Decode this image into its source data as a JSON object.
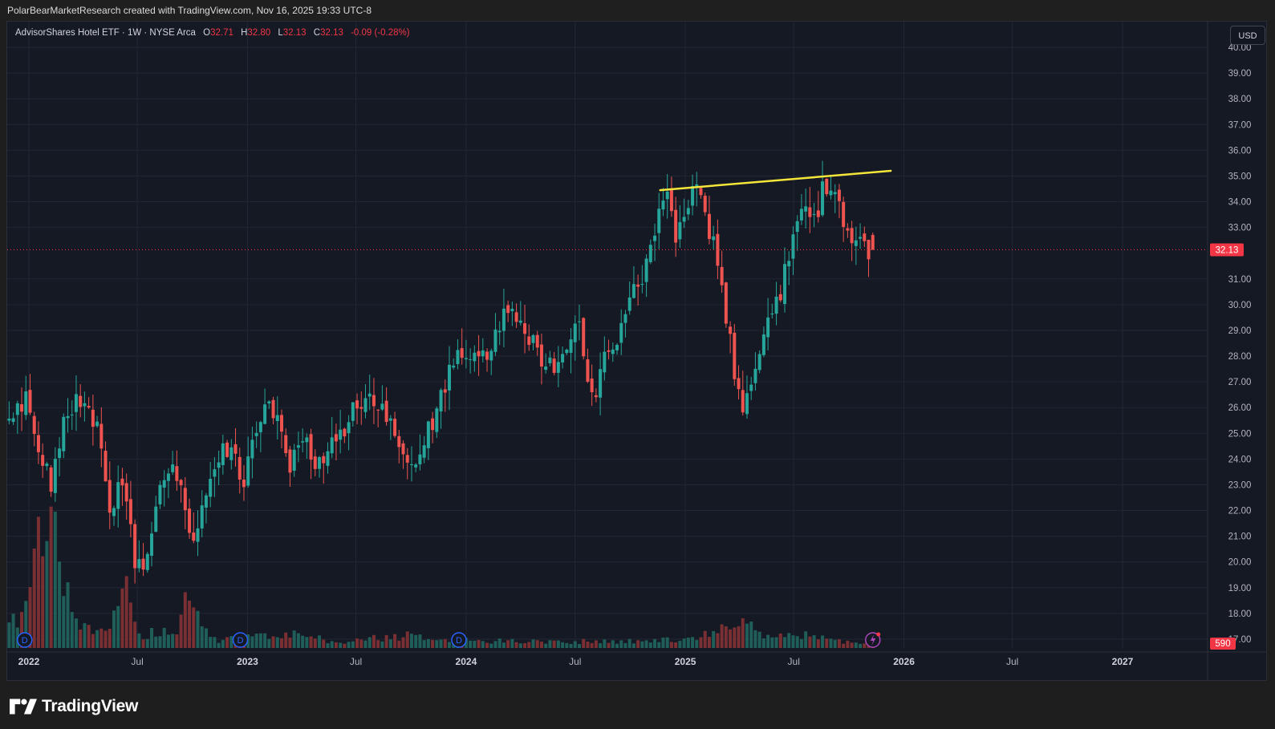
{
  "header": {
    "attribution": "PolarBearMarketResearch created with TradingView.com, Nov 16, 2025 19:33 UTC-8"
  },
  "legend": {
    "symbol": "AdvisorShares Hotel ETF · 1W · NYSE Arca",
    "o_label": "O",
    "o_value": "32.71",
    "h_label": "H",
    "h_value": "32.80",
    "l_label": "L",
    "l_value": "32.13",
    "c_label": "C",
    "c_value": "32.13",
    "change": "-0.09 (-0.28%)"
  },
  "currency_button": "USD",
  "brand": "TradingView",
  "colors": {
    "background": "#151924",
    "grid": "#232735",
    "up": "#26a69a",
    "down": "#ef5350",
    "trendline": "#f5e63a",
    "price_marker": "#f23645",
    "axis_text": "#b2b5be"
  },
  "chart_data": {
    "type": "candlestick",
    "interval": "1W",
    "ylim": [
      16.5,
      40.5
    ],
    "y_ticks": [
      "40.00",
      "39.00",
      "38.00",
      "37.00",
      "36.00",
      "35.00",
      "34.00",
      "33.00",
      "31.00",
      "30.00",
      "29.00",
      "28.00",
      "27.00",
      "26.00",
      "25.00",
      "24.00",
      "23.00",
      "22.00",
      "21.00",
      "20.00",
      "19.00",
      "18.00",
      "17.00"
    ],
    "y_tick_values": [
      40,
      39,
      38,
      37,
      36,
      35,
      34,
      33,
      31,
      30,
      29,
      28,
      27,
      26,
      25,
      24,
      23,
      22,
      21,
      20,
      19,
      18,
      17
    ],
    "x_ticks": [
      {
        "label": "2022",
        "date": "2022-01-01",
        "bold": true
      },
      {
        "label": "Jul",
        "date": "2022-07-01",
        "bold": false
      },
      {
        "label": "2023",
        "date": "2023-01-01",
        "bold": true
      },
      {
        "label": "Jul",
        "date": "2023-07-01",
        "bold": false
      },
      {
        "label": "2024",
        "date": "2024-01-01",
        "bold": true
      },
      {
        "label": "Jul",
        "date": "2024-07-01",
        "bold": false
      },
      {
        "label": "2025",
        "date": "2025-01-01",
        "bold": true
      },
      {
        "label": "Jul",
        "date": "2025-07-01",
        "bold": false
      },
      {
        "label": "2026",
        "date": "2026-01-01",
        "bold": true
      },
      {
        "label": "Jul",
        "date": "2026-07-01",
        "bold": false
      },
      {
        "label": "2027",
        "date": "2027-01-01",
        "bold": true
      }
    ],
    "last_price": 32.13,
    "last_price_label": "32.13",
    "volume_label": "590",
    "dividend_marker_label": "D",
    "dividend_dates": [
      "2021-12-25",
      "2022-12-20",
      "2023-12-20"
    ],
    "trendline": {
      "start": {
        "date": "2024-11-20",
        "price": 34.45
      },
      "end": {
        "date": "2025-12-10",
        "price": 35.2
      }
    },
    "close_path": [
      [
        "2021-11-15",
        25.2
      ],
      [
        "2021-12-27",
        26.4
      ],
      [
        "2022-02-07",
        22.9
      ],
      [
        "2022-02-28",
        25.6
      ],
      [
        "2022-04-04",
        26.6
      ],
      [
        "2022-05-02",
        24.8
      ],
      [
        "2022-05-16",
        22.0
      ],
      [
        "2022-06-06",
        23.3
      ],
      [
        "2022-06-27",
        20.2
      ],
      [
        "2022-07-11",
        19.9
      ],
      [
        "2022-08-08",
        23.0
      ],
      [
        "2022-08-29",
        24.0
      ],
      [
        "2022-09-19",
        22.0
      ],
      [
        "2022-10-03",
        21.0
      ],
      [
        "2022-10-24",
        22.4
      ],
      [
        "2022-11-14",
        24.2
      ],
      [
        "2022-12-05",
        24.3
      ],
      [
        "2022-12-26",
        23.0
      ],
      [
        "2023-01-09",
        24.8
      ],
      [
        "2023-02-06",
        26.0
      ],
      [
        "2023-02-27",
        25.0
      ],
      [
        "2023-03-13",
        23.6
      ],
      [
        "2023-04-03",
        24.8
      ],
      [
        "2023-04-24",
        24.0
      ],
      [
        "2023-05-15",
        24.3
      ],
      [
        "2023-06-05",
        24.9
      ],
      [
        "2023-06-26",
        25.8
      ],
      [
        "2023-07-17",
        26.7
      ],
      [
        "2023-08-07",
        26.0
      ],
      [
        "2023-08-28",
        25.3
      ],
      [
        "2023-09-18",
        24.2
      ],
      [
        "2023-10-09",
        23.8
      ],
      [
        "2023-10-30",
        25.1
      ],
      [
        "2023-11-20",
        26.4
      ],
      [
        "2023-12-11",
        27.8
      ],
      [
        "2024-01-08",
        28.0
      ],
      [
        "2024-02-05",
        28.2
      ],
      [
        "2024-03-04",
        29.6
      ],
      [
        "2024-03-25",
        29.4
      ],
      [
        "2024-04-08",
        29.0
      ],
      [
        "2024-05-06",
        28.0
      ],
      [
        "2024-06-03",
        27.5
      ],
      [
        "2024-06-24",
        28.4
      ],
      [
        "2024-07-08",
        29.3
      ],
      [
        "2024-07-29",
        26.2
      ],
      [
        "2024-08-19",
        27.8
      ],
      [
        "2024-09-09",
        28.4
      ],
      [
        "2024-10-07",
        30.4
      ],
      [
        "2024-10-28",
        31.5
      ],
      [
        "2024-11-18",
        33.6
      ],
      [
        "2024-12-02",
        34.5
      ],
      [
        "2024-12-16",
        32.8
      ],
      [
        "2025-01-06",
        33.8
      ],
      [
        "2025-01-20",
        34.6
      ],
      [
        "2025-02-10",
        33.0
      ],
      [
        "2025-02-24",
        31.5
      ],
      [
        "2025-03-10",
        29.5
      ],
      [
        "2025-04-07",
        25.6
      ],
      [
        "2025-04-28",
        27.8
      ],
      [
        "2025-05-19",
        29.7
      ],
      [
        "2025-06-09",
        30.5
      ],
      [
        "2025-07-07",
        33.1
      ],
      [
        "2025-07-21",
        33.9
      ],
      [
        "2025-08-04",
        33.3
      ],
      [
        "2025-08-18",
        34.4
      ],
      [
        "2025-09-08",
        34.2
      ],
      [
        "2025-09-22",
        33.0
      ],
      [
        "2025-10-06",
        32.5
      ],
      [
        "2025-10-20",
        32.3
      ],
      [
        "2025-11-10",
        32.13
      ]
    ],
    "volume_path": [
      [
        "2021-11-15",
        1.8
      ],
      [
        "2021-12-27",
        2.4
      ],
      [
        "2022-02-01",
        9.8
      ],
      [
        "2022-02-21",
        4.8
      ],
      [
        "2022-03-21",
        1.4
      ],
      [
        "2022-05-16",
        1.2
      ],
      [
        "2022-06-06",
        4.5
      ],
      [
        "2022-07-01",
        0.8
      ],
      [
        "2022-09-05",
        1.3
      ],
      [
        "2022-09-19",
        4.6
      ],
      [
        "2022-11-01",
        0.5
      ],
      [
        "2023-03-13",
        0.9
      ],
      [
        "2023-06-01",
        0.4
      ],
      [
        "2023-09-18",
        0.8
      ],
      [
        "2024-01-01",
        0.5
      ],
      [
        "2024-06-01",
        0.4
      ],
      [
        "2024-12-01",
        0.5
      ],
      [
        "2025-02-24",
        1.0
      ],
      [
        "2025-04-07",
        1.7
      ],
      [
        "2025-05-19",
        0.7
      ],
      [
        "2025-07-07",
        0.9
      ],
      [
        "2025-09-08",
        0.5
      ],
      [
        "2025-11-10",
        0.2
      ]
    ],
    "volume_max": 10
  }
}
